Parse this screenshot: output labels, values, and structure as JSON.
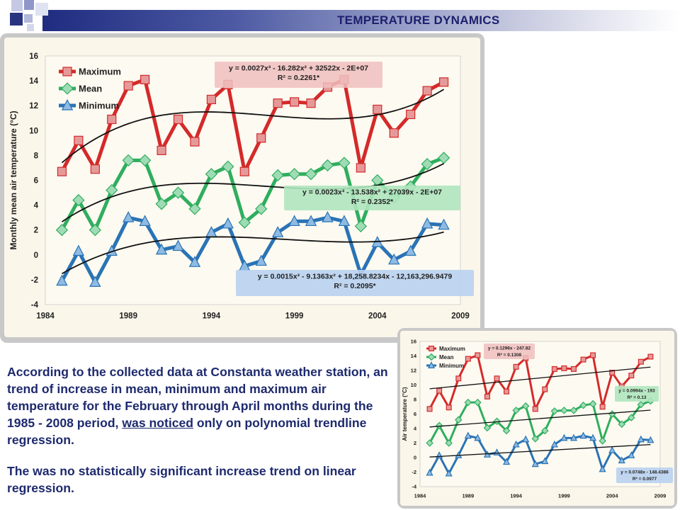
{
  "header": {
    "title": "TEMPERATURE DYNAMICS"
  },
  "colors": {
    "maximum": "#d42a2a",
    "mean": "#2fae5e",
    "minimum": "#2a73b5",
    "trend": "#111111",
    "text": "#1e2a6e"
  },
  "text": {
    "p1_part1": "According to the collected data at Constanta weather station, an trend of increase in mean, minimum and maximum air temperature for the February through April months during the 1985 - 2008 period, ",
    "p1_underlined": "was noticed",
    "p1_part2": " only on polynomial trendline regression.",
    "p2": "The was no statistically significant increase trend on linear regression."
  },
  "chart_data": [
    {
      "type": "line",
      "ylabel": "Monthly mean air temperature (°C)",
      "xlim": [
        1984,
        2009
      ],
      "ylim": [
        -4,
        16
      ],
      "xticks": [
        "1984",
        "1989",
        "1994",
        "1999",
        "2004",
        "2009"
      ],
      "yticks": [
        "-4",
        "-2",
        "0",
        "2",
        "4",
        "6",
        "8",
        "10",
        "12",
        "14",
        "16"
      ],
      "legend_position": "top-left",
      "x": [
        1985,
        1986,
        1987,
        1988,
        1989,
        1990,
        1991,
        1992,
        1993,
        1994,
        1995,
        1996,
        1997,
        1998,
        1999,
        2000,
        2001,
        2002,
        2003,
        2004,
        2005,
        2006,
        2007,
        2008
      ],
      "series": [
        {
          "name": "Maximum",
          "values": [
            6.7,
            9.2,
            6.9,
            10.9,
            13.6,
            14.1,
            8.4,
            10.9,
            9.1,
            12.5,
            13.7,
            6.7,
            9.4,
            12.2,
            12.3,
            12.2,
            13.5,
            14.1,
            7.0,
            11.7,
            9.8,
            11.3,
            13.2,
            13.9
          ],
          "trend": {
            "equation": "y = 0.0027x³ - 16.282x² + 32522x - 2E+07",
            "r2": "R² = 0.2261*"
          }
        },
        {
          "name": "Mean",
          "values": [
            2.0,
            4.4,
            2.0,
            5.2,
            7.6,
            7.6,
            4.1,
            5.0,
            3.7,
            6.5,
            7.1,
            2.6,
            3.7,
            6.4,
            6.5,
            6.5,
            7.2,
            7.4,
            2.3,
            6.0,
            4.6,
            5.5,
            7.3,
            7.8
          ],
          "trend": {
            "equation": "y = 0.0023x³ - 13.538x² + 27039x - 2E+07",
            "r2": "R² = 0.2352*"
          }
        },
        {
          "name": "Minimum",
          "values": [
            -2.1,
            0.3,
            -2.2,
            0.3,
            3.0,
            2.7,
            0.4,
            0.7,
            -0.6,
            1.8,
            2.5,
            -0.9,
            -0.5,
            1.8,
            2.7,
            2.7,
            3.0,
            2.7,
            -1.6,
            1.0,
            -0.4,
            0.3,
            2.5,
            2.4
          ],
          "trend": {
            "equation": "y = 0.0015x³ - 9.1363x² + 18,258.8234x - 12,163,296.9479",
            "r2": "R² = 0.2095*"
          }
        }
      ]
    },
    {
      "type": "line",
      "ylabel": "Air temperature (°C)",
      "xlim": [
        1984,
        2009
      ],
      "ylim": [
        -4,
        16
      ],
      "xticks": [
        "1984",
        "1989",
        "1994",
        "1999",
        "2004",
        "2009"
      ],
      "yticks": [
        "-4",
        "-2",
        "0",
        "2",
        "4",
        "6",
        "8",
        "10",
        "12",
        "14",
        "16"
      ],
      "legend_position": "top-left",
      "x": [
        1985,
        1986,
        1987,
        1988,
        1989,
        1990,
        1991,
        1992,
        1993,
        1994,
        1995,
        1996,
        1997,
        1998,
        1999,
        2000,
        2001,
        2002,
        2003,
        2004,
        2005,
        2006,
        2007,
        2008
      ],
      "series": [
        {
          "name": "Maximum",
          "values": [
            6.7,
            9.2,
            6.9,
            10.9,
            13.6,
            14.1,
            8.4,
            10.9,
            9.1,
            12.5,
            13.7,
            6.7,
            9.4,
            12.2,
            12.3,
            12.2,
            13.5,
            14.1,
            7.0,
            11.7,
            9.8,
            11.3,
            13.2,
            13.9
          ],
          "trend": {
            "equation": "y = 0.1296x - 247.82",
            "r2": "R² = 0.1308"
          }
        },
        {
          "name": "Mean",
          "values": [
            2.0,
            4.4,
            2.0,
            5.2,
            7.6,
            7.6,
            4.1,
            5.0,
            3.7,
            6.5,
            7.1,
            2.6,
            3.7,
            6.4,
            6.5,
            6.5,
            7.2,
            7.4,
            2.3,
            6.0,
            4.6,
            5.5,
            7.3,
            7.8
          ],
          "trend": {
            "equation": "y = 0.0994x - 193",
            "r2": "R² = 0.13"
          }
        },
        {
          "name": "Minimum",
          "values": [
            -2.1,
            0.3,
            -2.2,
            0.3,
            3.0,
            2.7,
            0.4,
            0.7,
            -0.6,
            1.8,
            2.5,
            -0.9,
            -0.5,
            1.8,
            2.7,
            2.7,
            3.0,
            2.7,
            -1.6,
            1.0,
            -0.4,
            0.3,
            2.5,
            2.4
          ],
          "trend": {
            "equation": "y = 0.0748x - 148.4386",
            "r2": "R² = 0.0977"
          }
        }
      ]
    }
  ]
}
